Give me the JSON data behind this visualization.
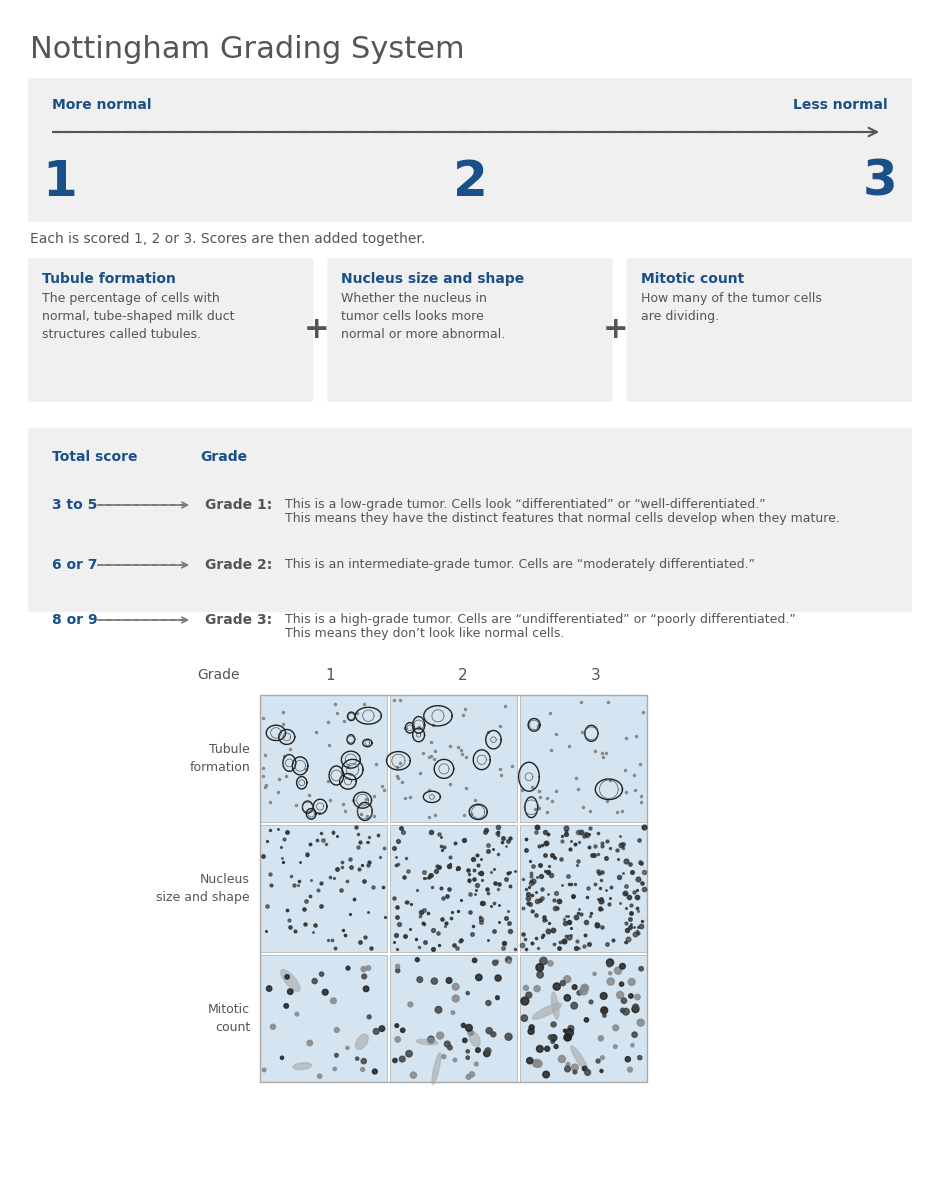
{
  "title": "Nottingham Grading System",
  "title_color": "#555555",
  "title_fontsize": 22,
  "bg_color": "#ffffff",
  "panel_bg": "#f0f0f0",
  "blue_color": "#1a4f8a",
  "dark_gray": "#555555",
  "medium_gray": "#777777",
  "section1": {
    "more_normal": "More normal",
    "less_normal": "Less normal",
    "scores": [
      "1",
      "2",
      "3"
    ]
  },
  "section2_text": "Each is scored 1, 2 or 3. Scores are then added together.",
  "boxes": [
    {
      "title": "Tubule formation",
      "body": "The percentage of cells with\nnormal, tube-shaped milk duct\nstructures called tubules."
    },
    {
      "title": "Nucleus size and shape",
      "body": "Whether the nucleus in\ntumor cells looks more\nnormal or more abnormal."
    },
    {
      "title": "Mitotic count",
      "body": "How many of the tumor cells\nare dividing."
    }
  ],
  "score_rows": [
    {
      "score": "3 to 5",
      "grade_label": "Grade 1:",
      "line1": "This is a low-grade tumor. Cells look “differentiated” or “well-differentiated.”",
      "line2": "This means they have the distinct features that normal cells develop when they mature."
    },
    {
      "score": "6 or 7",
      "grade_label": "Grade 2:",
      "line1": "This is an intermediate-grade tumor. Cells are “moderately differentiated.”",
      "line2": ""
    },
    {
      "score": "8 or 9",
      "grade_label": "Grade 3:",
      "line1": "This is a high-grade tumor. Cells are “undifferentiated” or “poorly differentiated.”",
      "line2": "This means they don’t look like normal cells."
    }
  ],
  "grid_row_labels": [
    "Tubule\nformation",
    "Nucleus\nsize and shape",
    "Mitotic\ncount"
  ],
  "grid_col_labels": [
    "1",
    "2",
    "3"
  ],
  "grid_label_col": "Grade"
}
